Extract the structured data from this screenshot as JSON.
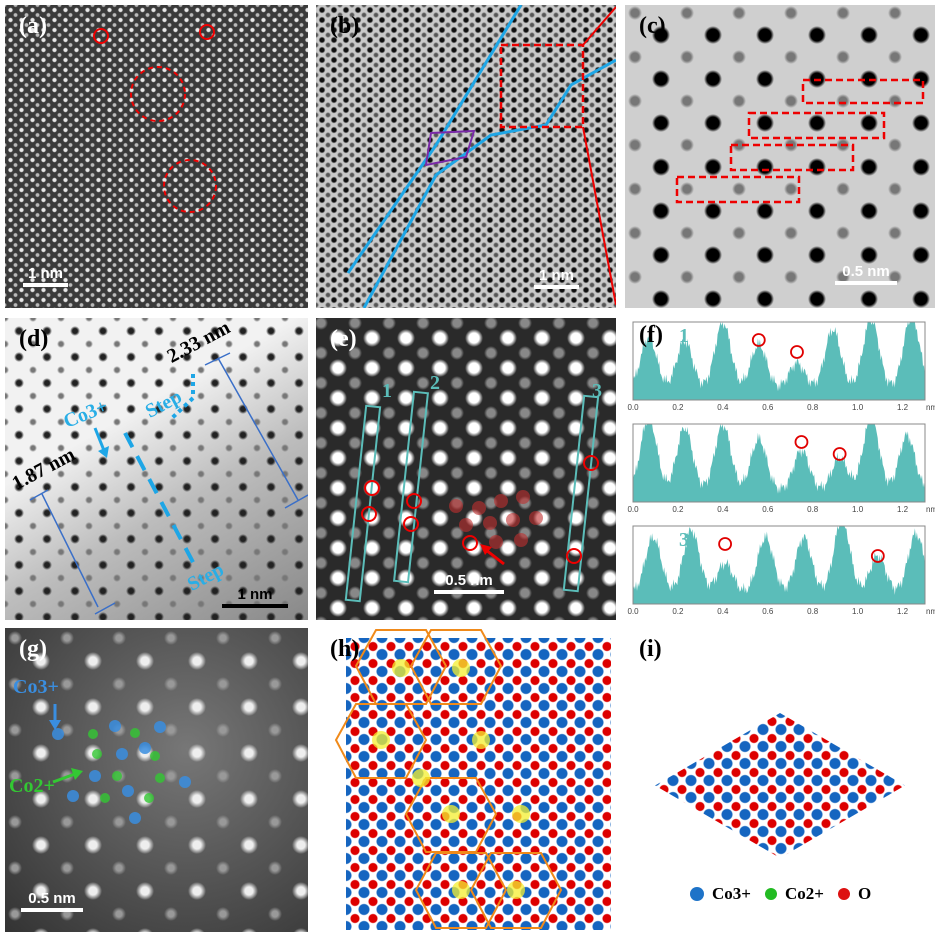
{
  "panels": {
    "a": {
      "label": "(a)",
      "scale": "1 nm"
    },
    "b": {
      "label": "(b)",
      "scale": "1 nm"
    },
    "c": {
      "label": "(c)",
      "scale": "0.5 nm"
    },
    "d": {
      "label": "(d)",
      "scale": "1 nm",
      "dim1": "2.33 nm",
      "dim2": "1.87 nm",
      "ion": "Co3+",
      "step1": "Step",
      "step2": "Step"
    },
    "e": {
      "label": "(e)",
      "scale": "0.5 nm",
      "boxes": [
        "1",
        "2",
        "3"
      ]
    },
    "f": {
      "label": "(f)"
    },
    "g": {
      "label": "(g)",
      "scale": "0.5 nm",
      "ion1": "Co3+",
      "ion2": "Co2+"
    },
    "h": {
      "label": "(h)"
    },
    "i": {
      "label": "(i)",
      "legend": [
        "Co3+",
        "Co2+",
        "O"
      ]
    }
  },
  "colors": {
    "co3": "#1e73c8",
    "co2": "#22bb22",
    "o": "#dd1111",
    "profile": "#5bbdb9",
    "marker": "#e00000",
    "accent": "#29aee6"
  },
  "chart_data": {
    "type": "area",
    "xlabel": "nm",
    "xlim": [
      0,
      1.3
    ],
    "xticks": [
      "0.0",
      "0.2",
      "0.4",
      "0.6",
      "0.8",
      "1.0",
      "1.2"
    ],
    "series": [
      {
        "name": "1",
        "peaks": [
          0.07,
          0.23,
          0.4,
          0.56,
          0.73,
          0.89,
          1.06,
          1.24
        ],
        "heights": [
          0.7,
          0.65,
          0.9,
          0.6,
          0.35,
          0.8,
          0.95,
          1.0
        ],
        "markers": [
          0.56,
          0.73
        ]
      },
      {
        "name": "2",
        "peaks": [
          0.07,
          0.23,
          0.4,
          0.56,
          0.75,
          0.92,
          1.06,
          1.22
        ],
        "heights": [
          1.0,
          0.85,
          0.9,
          0.7,
          0.55,
          0.45,
          1.0,
          0.75
        ],
        "markers": [
          0.75,
          0.92
        ]
      },
      {
        "name": "3",
        "peaks": [
          0.09,
          0.26,
          0.41,
          0.59,
          0.76,
          0.93,
          1.09,
          1.26
        ],
        "heights": [
          0.75,
          0.85,
          0.4,
          0.75,
          0.75,
          1.0,
          0.5,
          0.8
        ],
        "markers": [
          0.41,
          1.09
        ]
      }
    ]
  }
}
